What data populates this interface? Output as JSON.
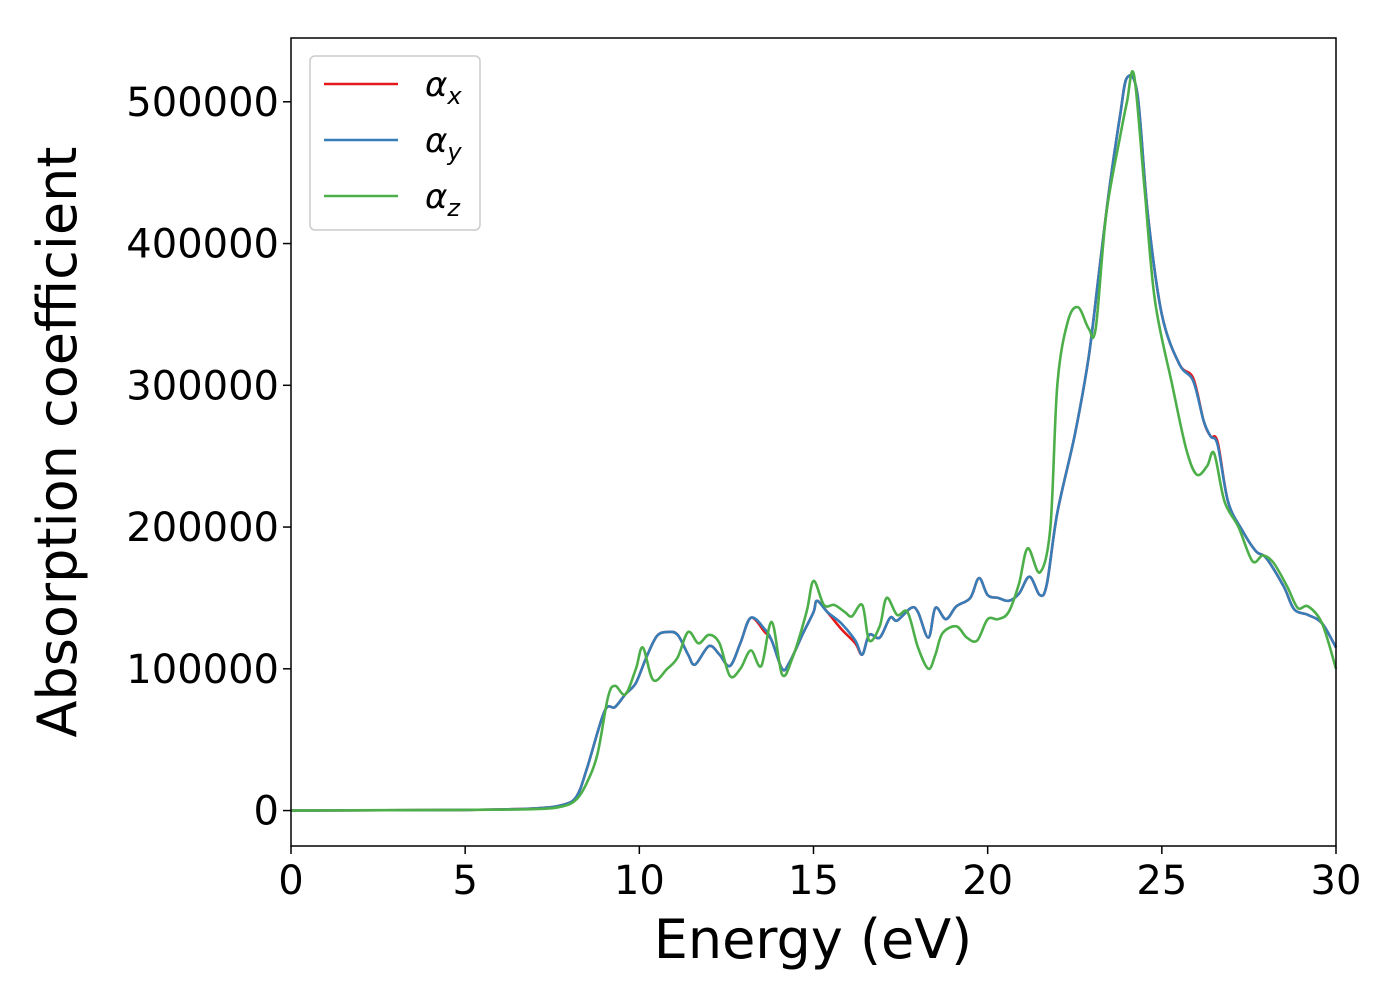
{
  "chart_data": {
    "type": "line",
    "xlabel": "Energy (eV)",
    "ylabel": "Absorption coefficient",
    "xlim": [
      0,
      30
    ],
    "ylim": [
      -25000,
      545000
    ],
    "xticks": [
      0,
      5,
      10,
      15,
      20,
      25,
      30
    ],
    "yticks": [
      0,
      100000,
      200000,
      300000,
      400000,
      500000
    ],
    "grid": false,
    "legend": "top-left",
    "series": [
      {
        "name": "α_x",
        "base": "α",
        "sub": "x",
        "color": "#e41a1c",
        "points": [
          [
            0,
            0
          ],
          [
            5,
            500
          ],
          [
            7,
            1500
          ],
          [
            7.8,
            4000
          ],
          [
            8.2,
            10000
          ],
          [
            8.5,
            30000
          ],
          [
            9.0,
            70000
          ],
          [
            9.3,
            73000
          ],
          [
            9.6,
            82000
          ],
          [
            9.9,
            90000
          ],
          [
            10.2,
            108000
          ],
          [
            10.5,
            123000
          ],
          [
            10.8,
            126000
          ],
          [
            11.1,
            124000
          ],
          [
            11.4,
            110000
          ],
          [
            11.6,
            103000
          ],
          [
            12.0,
            116000
          ],
          [
            12.3,
            110000
          ],
          [
            12.6,
            102000
          ],
          [
            12.9,
            118000
          ],
          [
            13.2,
            136000
          ],
          [
            13.6,
            126000
          ],
          [
            13.8,
            120000
          ],
          [
            14.1,
            100000
          ],
          [
            14.3,
            104000
          ],
          [
            14.7,
            125000
          ],
          [
            15.0,
            140000
          ],
          [
            15.1,
            148000
          ],
          [
            15.4,
            140000
          ],
          [
            15.8,
            128000
          ],
          [
            16.2,
            118000
          ],
          [
            16.4,
            110000
          ],
          [
            16.6,
            124000
          ],
          [
            16.9,
            122000
          ],
          [
            17.2,
            136000
          ],
          [
            17.4,
            134000
          ],
          [
            17.8,
            143000
          ],
          [
            18.0,
            140000
          ],
          [
            18.3,
            122000
          ],
          [
            18.5,
            143000
          ],
          [
            18.8,
            135000
          ],
          [
            19.1,
            144000
          ],
          [
            19.5,
            150000
          ],
          [
            19.75,
            164000
          ],
          [
            20.0,
            152000
          ],
          [
            20.3,
            150000
          ],
          [
            20.6,
            148000
          ],
          [
            20.9,
            153000
          ],
          [
            21.2,
            165000
          ],
          [
            21.5,
            152000
          ],
          [
            21.7,
            160000
          ],
          [
            22.0,
            210000
          ],
          [
            22.5,
            265000
          ],
          [
            22.9,
            320000
          ],
          [
            23.2,
            380000
          ],
          [
            23.5,
            440000
          ],
          [
            23.8,
            490000
          ],
          [
            24.0,
            517000
          ],
          [
            24.3,
            505000
          ],
          [
            24.6,
            420000
          ],
          [
            25.0,
            350000
          ],
          [
            25.5,
            315000
          ],
          [
            25.9,
            305000
          ],
          [
            26.2,
            275000
          ],
          [
            26.4,
            264000
          ],
          [
            26.6,
            260000
          ],
          [
            26.9,
            218000
          ],
          [
            27.3,
            198000
          ],
          [
            27.7,
            183000
          ],
          [
            28.0,
            178000
          ],
          [
            28.5,
            158000
          ],
          [
            28.8,
            142000
          ],
          [
            29.2,
            138000
          ],
          [
            29.6,
            132000
          ],
          [
            30,
            115000
          ]
        ]
      },
      {
        "name": "α_y",
        "base": "α",
        "sub": "y",
        "color": "#377eb8",
        "points": [
          [
            0,
            0
          ],
          [
            5,
            500
          ],
          [
            7,
            1500
          ],
          [
            7.8,
            4000
          ],
          [
            8.2,
            10000
          ],
          [
            8.5,
            30000
          ],
          [
            9.0,
            70000
          ],
          [
            9.3,
            73000
          ],
          [
            9.6,
            82000
          ],
          [
            9.9,
            90000
          ],
          [
            10.2,
            108000
          ],
          [
            10.5,
            123000
          ],
          [
            10.8,
            126000
          ],
          [
            11.1,
            124000
          ],
          [
            11.4,
            110000
          ],
          [
            11.6,
            103000
          ],
          [
            12.0,
            116000
          ],
          [
            12.3,
            110000
          ],
          [
            12.6,
            102000
          ],
          [
            12.9,
            118000
          ],
          [
            13.2,
            136000
          ],
          [
            13.6,
            128000
          ],
          [
            13.8,
            120000
          ],
          [
            14.1,
            100000
          ],
          [
            14.3,
            104000
          ],
          [
            14.7,
            125000
          ],
          [
            15.0,
            140000
          ],
          [
            15.1,
            148000
          ],
          [
            15.4,
            140000
          ],
          [
            15.8,
            132000
          ],
          [
            16.2,
            120000
          ],
          [
            16.4,
            110000
          ],
          [
            16.6,
            124000
          ],
          [
            16.9,
            122000
          ],
          [
            17.2,
            136000
          ],
          [
            17.4,
            134000
          ],
          [
            17.8,
            143000
          ],
          [
            18.0,
            140000
          ],
          [
            18.3,
            122000
          ],
          [
            18.5,
            143000
          ],
          [
            18.8,
            135000
          ],
          [
            19.1,
            144000
          ],
          [
            19.5,
            150000
          ],
          [
            19.75,
            164000
          ],
          [
            20.0,
            152000
          ],
          [
            20.3,
            150000
          ],
          [
            20.6,
            148000
          ],
          [
            20.9,
            153000
          ],
          [
            21.2,
            165000
          ],
          [
            21.5,
            152000
          ],
          [
            21.7,
            160000
          ],
          [
            22.0,
            210000
          ],
          [
            22.5,
            265000
          ],
          [
            22.9,
            320000
          ],
          [
            23.2,
            380000
          ],
          [
            23.5,
            440000
          ],
          [
            23.8,
            490000
          ],
          [
            24.0,
            517000
          ],
          [
            24.3,
            505000
          ],
          [
            24.6,
            420000
          ],
          [
            25.0,
            350000
          ],
          [
            25.5,
            315000
          ],
          [
            25.9,
            303000
          ],
          [
            26.2,
            275000
          ],
          [
            26.4,
            264000
          ],
          [
            26.6,
            258000
          ],
          [
            26.9,
            218000
          ],
          [
            27.3,
            198000
          ],
          [
            27.7,
            183000
          ],
          [
            28.0,
            178000
          ],
          [
            28.5,
            158000
          ],
          [
            28.8,
            142000
          ],
          [
            29.2,
            138000
          ],
          [
            29.6,
            132000
          ],
          [
            30,
            115000
          ]
        ]
      },
      {
        "name": "α_z",
        "base": "α",
        "sub": "z",
        "color": "#4daf4a",
        "points": [
          [
            0,
            0
          ],
          [
            5,
            500
          ],
          [
            7,
            1000
          ],
          [
            7.8,
            3000
          ],
          [
            8.2,
            8000
          ],
          [
            8.5,
            20000
          ],
          [
            8.8,
            40000
          ],
          [
            9.1,
            80000
          ],
          [
            9.3,
            88000
          ],
          [
            9.6,
            82000
          ],
          [
            9.9,
            100000
          ],
          [
            10.1,
            115000
          ],
          [
            10.4,
            92000
          ],
          [
            10.8,
            100000
          ],
          [
            11.1,
            108000
          ],
          [
            11.4,
            126000
          ],
          [
            11.7,
            118000
          ],
          [
            12.0,
            124000
          ],
          [
            12.3,
            118000
          ],
          [
            12.6,
            95000
          ],
          [
            12.9,
            100000
          ],
          [
            13.2,
            113000
          ],
          [
            13.5,
            102000
          ],
          [
            13.8,
            133000
          ],
          [
            14.1,
            96000
          ],
          [
            14.4,
            108000
          ],
          [
            14.8,
            140000
          ],
          [
            15.0,
            162000
          ],
          [
            15.3,
            145000
          ],
          [
            15.6,
            145000
          ],
          [
            15.9,
            140000
          ],
          [
            16.1,
            137000
          ],
          [
            16.4,
            145000
          ],
          [
            16.6,
            120000
          ],
          [
            16.9,
            130000
          ],
          [
            17.1,
            150000
          ],
          [
            17.4,
            138000
          ],
          [
            17.7,
            140000
          ],
          [
            18.0,
            115000
          ],
          [
            18.3,
            100000
          ],
          [
            18.5,
            110000
          ],
          [
            18.7,
            125000
          ],
          [
            19.1,
            130000
          ],
          [
            19.4,
            122000
          ],
          [
            19.7,
            120000
          ],
          [
            20.0,
            135000
          ],
          [
            20.3,
            135000
          ],
          [
            20.6,
            140000
          ],
          [
            20.9,
            160000
          ],
          [
            21.15,
            185000
          ],
          [
            21.5,
            168000
          ],
          [
            21.8,
            200000
          ],
          [
            22.0,
            300000
          ],
          [
            22.3,
            345000
          ],
          [
            22.6,
            355000
          ],
          [
            22.9,
            340000
          ],
          [
            23.1,
            340000
          ],
          [
            23.4,
            420000
          ],
          [
            23.8,
            475000
          ],
          [
            24.0,
            500000
          ],
          [
            24.2,
            519000
          ],
          [
            24.5,
            440000
          ],
          [
            24.8,
            360000
          ],
          [
            25.3,
            300000
          ],
          [
            25.7,
            255000
          ],
          [
            26.0,
            237000
          ],
          [
            26.3,
            243000
          ],
          [
            26.5,
            252000
          ],
          [
            26.8,
            218000
          ],
          [
            27.2,
            200000
          ],
          [
            27.6,
            176000
          ],
          [
            27.9,
            180000
          ],
          [
            28.2,
            175000
          ],
          [
            28.6,
            158000
          ],
          [
            28.9,
            143000
          ],
          [
            29.2,
            144000
          ],
          [
            29.6,
            132000
          ],
          [
            30,
            100000
          ]
        ]
      }
    ]
  }
}
